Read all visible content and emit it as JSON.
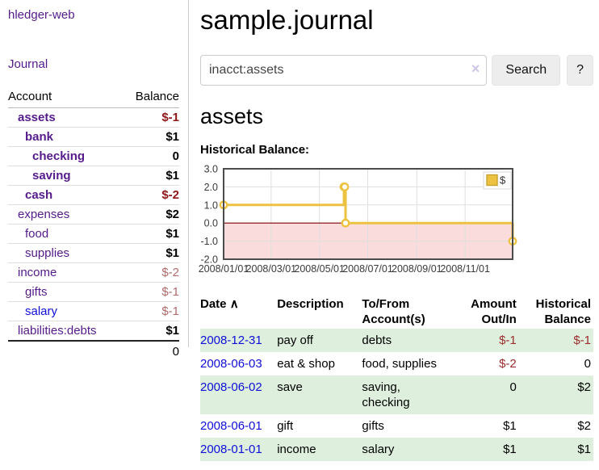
{
  "app": {
    "title": "hledger-web"
  },
  "nav": {
    "journal": "Journal"
  },
  "sidebar": {
    "headers": {
      "account": "Account",
      "balance": "Balance"
    },
    "accounts": [
      {
        "name": "assets",
        "balance": "$-1"
      },
      {
        "name": "bank",
        "balance": "$1"
      },
      {
        "name": "checking",
        "balance": "0"
      },
      {
        "name": "saving",
        "balance": "$1"
      },
      {
        "name": "cash",
        "balance": "$-2"
      },
      {
        "name": "expenses",
        "balance": "$2"
      },
      {
        "name": "food",
        "balance": "$1"
      },
      {
        "name": "supplies",
        "balance": "$1"
      },
      {
        "name": "income",
        "balance": "$-2"
      },
      {
        "name": "gifts",
        "balance": "$-1"
      },
      {
        "name": "salary",
        "balance": "$-1"
      },
      {
        "name": "liabilities:debts",
        "balance": "$1"
      }
    ],
    "total": "0"
  },
  "main": {
    "title": "sample.journal",
    "account_heading": "assets",
    "chart_heading": "Historical Balance:"
  },
  "search": {
    "value": "inacct:assets",
    "clear_icon": "×",
    "search_button": "Search",
    "help_button": "?"
  },
  "chart_data": {
    "type": "line",
    "title": "Historical Balance:",
    "step": true,
    "series": [
      {
        "name": "$",
        "color": "#edc240",
        "points": [
          [
            "2008-01-01",
            1
          ],
          [
            "2008-06-01",
            2
          ],
          [
            "2008-06-02",
            2
          ],
          [
            "2008-06-03",
            0
          ],
          [
            "2008-12-31",
            -1
          ]
        ]
      }
    ],
    "xlim": [
      "2008-01-01",
      "2008-12-31"
    ],
    "ylim": [
      -2,
      3
    ],
    "y_ticks": [
      3,
      2,
      1,
      0,
      -1,
      -2
    ],
    "x_ticks": [
      "2008/01/01",
      "2008/03/01",
      "2008/05/01",
      "2008/07/01",
      "2008/09/01",
      "2008/11/01"
    ],
    "grid": true,
    "legend": {
      "label": "$",
      "position": "top-right"
    },
    "negative_region_color": "#fbdcdc",
    "zero_line_color": "#800000"
  },
  "register": {
    "columns": {
      "date": "Date",
      "description": "Description",
      "accounts": "To/From Account(s)",
      "amount": "Amount Out/In",
      "balance": "Historical Balance"
    },
    "sort_icon": "∧",
    "rows": [
      {
        "date": "2008-12-31",
        "description": "pay off",
        "accounts": "debts",
        "amount": "$-1",
        "balance": "$-1"
      },
      {
        "date": "2008-06-03",
        "description": "eat & shop",
        "accounts": "food, supplies",
        "amount": "$-2",
        "balance": "0"
      },
      {
        "date": "2008-06-02",
        "description": "save",
        "accounts": "saving, checking",
        "amount": "0",
        "balance": "$2"
      },
      {
        "date": "2008-06-01",
        "description": "gift",
        "accounts": "gifts",
        "amount": "$1",
        "balance": "$2"
      },
      {
        "date": "2008-01-01",
        "description": "income",
        "accounts": "salary",
        "amount": "$1",
        "balance": "$1"
      }
    ]
  },
  "colors": {
    "link_purple": "#551a8b",
    "link_blue": "#0f0fd8",
    "negative_strong": "#8f1616",
    "negative_muted": "#b26a6a",
    "register_negative": "#9d2c2c",
    "row_stripe_green": "#deefde",
    "chart_line": "#edc240",
    "chart_negative_region": "#fbdcdc",
    "chart_zero_line": "#800000",
    "chart_border": "#4c4c4c"
  }
}
